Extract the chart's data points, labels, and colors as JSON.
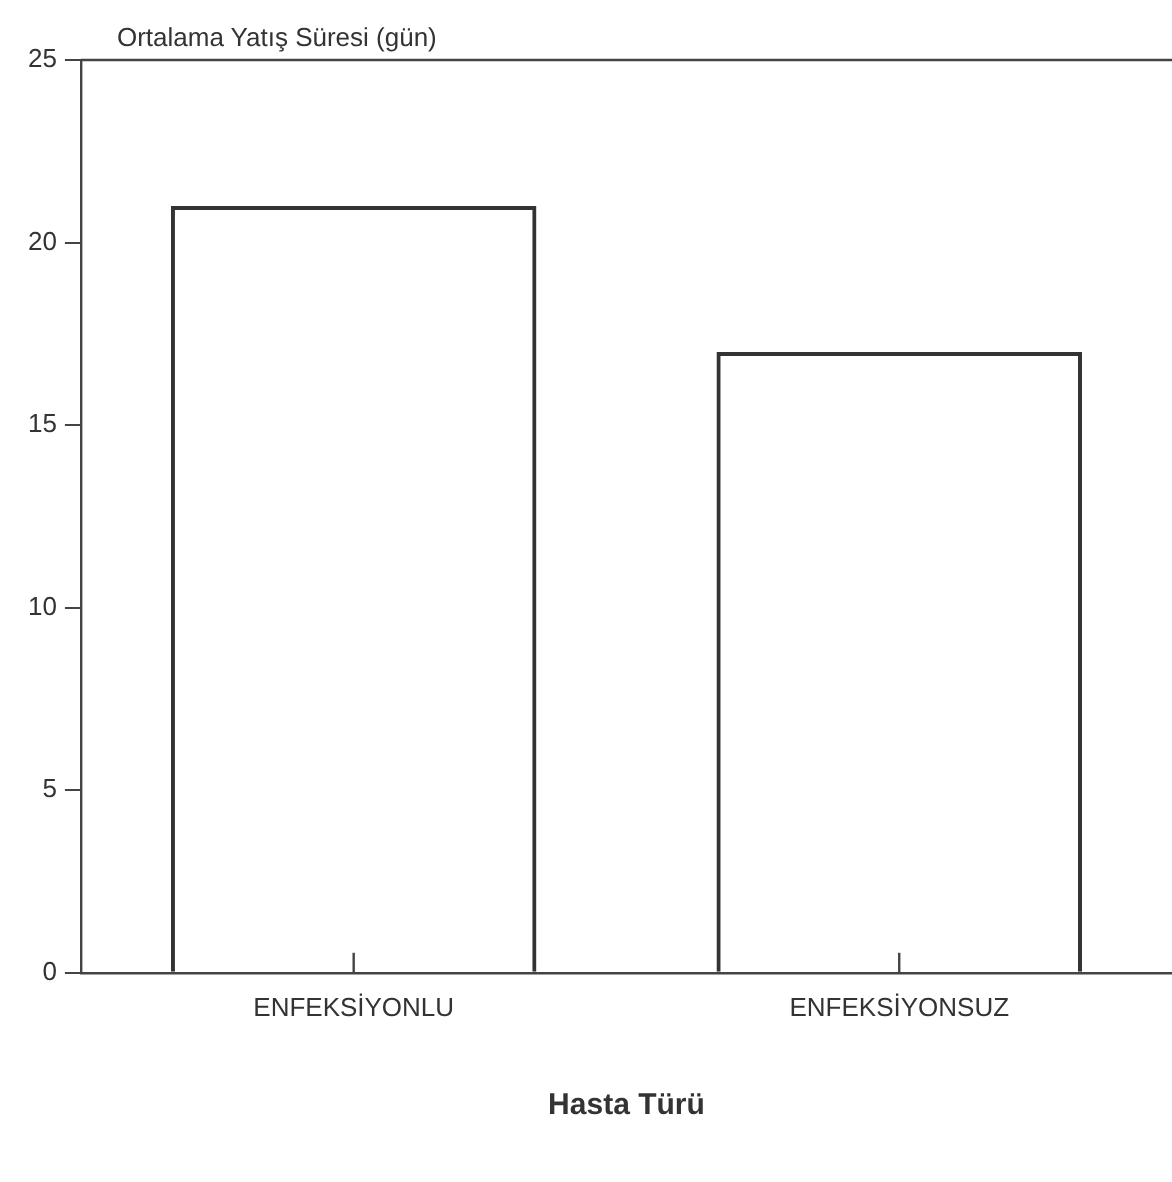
{
  "chart_data": {
    "type": "bar",
    "ylabel": "Ortalama Yatış Süresi (gün)",
    "xlabel": "Hasta Türü",
    "categories": [
      "ENFEKSİYONLU",
      "ENFEKSİYONSUZ"
    ],
    "values": [
      21,
      17
    ],
    "color": "#333333",
    "ylim": [
      0,
      25
    ],
    "yticks": [
      0,
      5,
      10,
      15,
      20,
      25
    ],
    "grid": false,
    "legend": false
  }
}
